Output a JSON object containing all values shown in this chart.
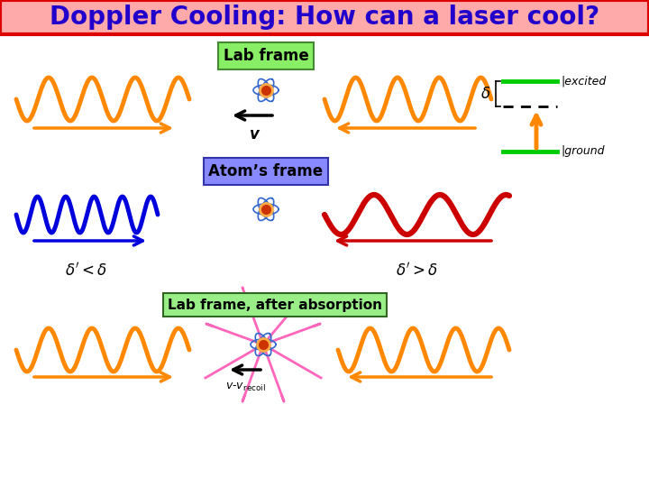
{
  "title": "Doppler Cooling: How can a laser cool?",
  "title_color": "#2200cc",
  "title_bg": "#ffaaaa",
  "title_border": "#dd0000",
  "bg_color": "#ffffff",
  "label_frame1": "Lab frame",
  "label_frame1_bg": "#88ee66",
  "label_frame1_border": "#448833",
  "label_frame2": "Atom’s frame",
  "label_frame2_bg": "#8888ff",
  "label_frame2_border": "#3333aa",
  "label_frame3": "Lab frame, after absorption",
  "label_frame3_bg": "#99ee88",
  "label_frame3_border": "#336622",
  "wave_color_orange": "#ff8800",
  "wave_color_blue": "#0000dd",
  "wave_color_red": "#cc0000",
  "wave_color_pink": "#ff66bb",
  "energy_level_color": "#00cc00",
  "laser_arrow_color": "#ff8800",
  "text_excited": "|excited",
  "text_ground": "|ground"
}
